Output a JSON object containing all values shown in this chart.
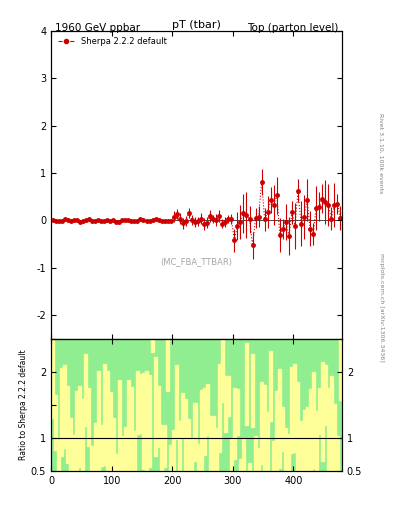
{
  "title_left": "1960 GeV ppbar",
  "title_right": "Top (parton level)",
  "plot_title": "pT (tbar)",
  "watermark": "(MC_FBA_TTBAR)",
  "right_label": "mcplots.cern.ch [arXiv:1306.3436]",
  "rivet_label": "Rivet 3.1.10, 100k events",
  "legend_label": "Sherpa 2.2.2 default",
  "ylabel_main": "",
  "ylabel_ratio": "Ratio to Sherpa 2.2.2 default",
  "xlabel": "",
  "xlim": [
    0,
    480
  ],
  "ylim_main": [
    -2.5,
    4.0
  ],
  "ylim_ratio": [
    0.5,
    2.5
  ],
  "main_color": "#cc0000",
  "background_color": "#ffffff",
  "ratio_green": "#90ee90",
  "ratio_yellow": "#ffff99"
}
